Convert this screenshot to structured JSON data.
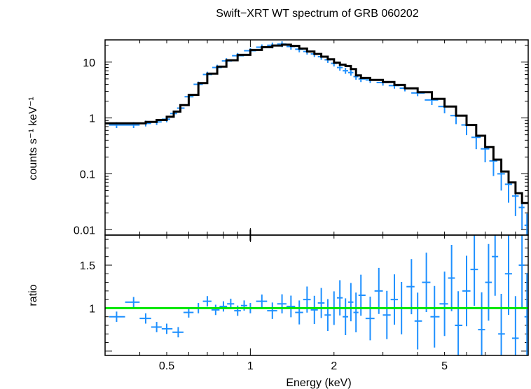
{
  "chart_data": [
    {
      "type": "scatter",
      "title": "Swift−XRT WT spectrum of GRB 060202",
      "xlabel": "",
      "ylabel": "counts s⁻¹ keV⁻¹",
      "xscale": "log",
      "yscale": "log",
      "xlim": [
        0.3,
        10
      ],
      "ylim": [
        0.008,
        25
      ],
      "y_ticks": [
        0.01,
        0.1,
        1,
        10
      ],
      "y_tick_labels": [
        "0.01",
        "0.1",
        "1",
        "10"
      ],
      "grid": false,
      "colors": {
        "data": "#1E90FF",
        "model": "#000000"
      },
      "series": [
        {
          "role": "data",
          "x": [
            0.33,
            0.38,
            0.42,
            0.46,
            0.5,
            0.53,
            0.56,
            0.6,
            0.65,
            0.7,
            0.76,
            0.82,
            0.9,
            1.0,
            1.1,
            1.2,
            1.3,
            1.4,
            1.5,
            1.6,
            1.7,
            1.8,
            1.9,
            2.0,
            2.1,
            2.2,
            2.3,
            2.4,
            2.5,
            2.7,
            3.0,
            3.3,
            3.6,
            4.0,
            4.5,
            5.0,
            5.5,
            6.0,
            6.5,
            7.0,
            7.5,
            8.0,
            8.5,
            9.0,
            9.5,
            9.9
          ],
          "y": [
            0.75,
            0.75,
            0.8,
            0.85,
            0.95,
            1.2,
            1.5,
            2.4,
            4.0,
            6.0,
            8.0,
            10.5,
            13,
            16,
            18.5,
            20,
            21,
            19,
            17,
            15.5,
            14,
            12.5,
            11,
            9.5,
            8.0,
            7.0,
            6.5,
            5.5,
            5.0,
            4.8,
            4.3,
            3.8,
            3.4,
            2.8,
            2.1,
            1.6,
            1.1,
            0.75,
            0.45,
            0.28,
            0.17,
            0.1,
            0.065,
            0.04,
            0.025,
            0.012
          ]
        },
        {
          "role": "model",
          "x": [
            0.3,
            0.33,
            0.38,
            0.42,
            0.46,
            0.5,
            0.53,
            0.56,
            0.6,
            0.65,
            0.7,
            0.76,
            0.82,
            0.9,
            1.0,
            1.1,
            1.2,
            1.3,
            1.4,
            1.5,
            1.6,
            1.7,
            1.8,
            1.9,
            2.0,
            2.1,
            2.2,
            2.3,
            2.4,
            2.5,
            2.7,
            3.0,
            3.3,
            3.6,
            4.0,
            4.5,
            5.0,
            5.5,
            6.0,
            6.5,
            7.0,
            7.5,
            8.0,
            8.5,
            9.0,
            9.5
          ],
          "y": [
            0.8,
            0.8,
            0.8,
            0.85,
            0.92,
            1.05,
            1.3,
            1.7,
            2.6,
            4.2,
            6.2,
            8.3,
            10.8,
            13.5,
            16.5,
            18.5,
            19.8,
            20.5,
            19.5,
            17.5,
            15.5,
            14,
            12.5,
            11.2,
            9.8,
            9.0,
            8.5,
            7.5,
            5.8,
            5.2,
            4.8,
            4.4,
            3.9,
            3.4,
            2.9,
            2.2,
            1.6,
            1.1,
            0.75,
            0.48,
            0.3,
            0.18,
            0.11,
            0.07,
            0.045,
            0.03
          ]
        }
      ]
    },
    {
      "type": "scatter",
      "title": "",
      "xlabel": "Energy (keV)",
      "ylabel": "ratio",
      "xscale": "log",
      "xlim": [
        0.3,
        10
      ],
      "ylim": [
        0.45,
        1.85
      ],
      "x_ticks": [
        0.5,
        1,
        2,
        5
      ],
      "x_tick_labels": [
        "0.5",
        "1",
        "2",
        "5"
      ],
      "y_ticks": [
        1,
        1.5
      ],
      "y_tick_labels": [
        "1",
        "1.5"
      ],
      "grid": false,
      "colors": {
        "data": "#1E90FF",
        "reference": "#00E600"
      },
      "reference_line": 1,
      "series": [
        {
          "role": "data",
          "x": [
            0.33,
            0.38,
            0.42,
            0.46,
            0.5,
            0.55,
            0.6,
            0.65,
            0.7,
            0.75,
            0.8,
            0.85,
            0.9,
            0.95,
            1.0,
            1.1,
            1.2,
            1.3,
            1.4,
            1.5,
            1.6,
            1.7,
            1.8,
            1.9,
            2.0,
            2.1,
            2.2,
            2.3,
            2.4,
            2.5,
            2.7,
            2.9,
            3.1,
            3.3,
            3.5,
            3.8,
            4.0,
            4.3,
            4.6,
            5.0,
            5.3,
            5.6,
            6.0,
            6.4,
            6.8,
            7.2,
            7.6,
            8.0,
            8.5,
            9.0,
            9.5,
            9.9
          ],
          "y": [
            0.9,
            1.07,
            0.88,
            0.78,
            0.76,
            0.72,
            0.95,
            1.0,
            1.08,
            0.98,
            1.02,
            1.05,
            0.97,
            1.03,
            1.0,
            1.08,
            0.97,
            1.05,
            1.02,
            0.95,
            1.1,
            0.98,
            1.06,
            0.92,
            1.0,
            1.12,
            0.9,
            1.07,
            0.95,
            1.15,
            0.88,
            1.2,
            0.92,
            1.1,
            1.0,
            1.25,
            0.85,
            1.3,
            0.9,
            1.05,
            1.35,
            0.8,
            1.2,
            1.45,
            0.75,
            1.3,
            1.6,
            0.7,
            1.4,
            0.65,
            1.5,
            0.9
          ]
        }
      ]
    }
  ]
}
